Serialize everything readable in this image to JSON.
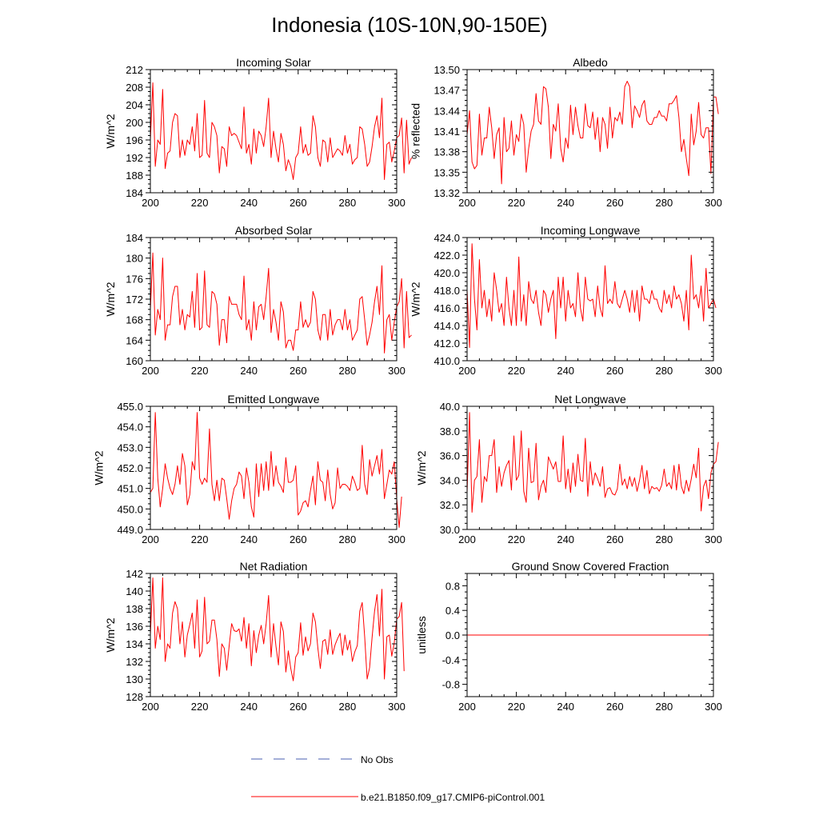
{
  "figure": {
    "title": "Indonesia (10S-10N,90-150E)"
  },
  "legend": {
    "items": [
      {
        "label": "No Obs",
        "color": "#4a5fb0",
        "dash": true
      },
      {
        "label": "b.e21.B1850.f09_g17.CMIP6-piControl.001",
        "color": "#ff0000",
        "dash": false
      }
    ]
  },
  "chart_data": [
    {
      "type": "line",
      "title": "Incoming Solar",
      "ylabel": "W/m^2",
      "xlim": [
        200,
        300
      ],
      "ylim": [
        184,
        212
      ],
      "xticks": [
        200,
        220,
        240,
        260,
        280,
        300
      ],
      "yticks": [
        184,
        188,
        192,
        196,
        200,
        204,
        208,
        212
      ],
      "ytick_labels": [
        "184",
        "188",
        "192",
        "196",
        "200",
        "204",
        "208",
        "212"
      ],
      "series": [
        {
          "name": "b.e21.B1850.f09_g17.CMIP6-piControl.001",
          "color": "#ff0000",
          "x0": 200,
          "values": [
            196,
            209,
            190,
            196,
            195,
            207.5,
            189.5,
            193,
            193.5,
            200,
            202,
            201.5,
            192,
            196,
            192.5,
            196,
            195,
            199,
            193.5,
            202,
            192,
            192.5,
            205,
            193,
            192,
            200,
            199,
            197,
            188.5,
            194.5,
            194,
            190,
            199,
            197,
            197.5,
            197,
            195.5,
            194,
            203.5,
            193,
            195,
            190.5,
            198.5,
            193,
            198,
            197,
            194.5,
            199,
            205.5,
            192,
            198,
            194,
            191,
            197.5,
            195,
            189,
            191.5,
            190,
            187,
            192,
            193,
            199,
            193,
            195,
            192.5,
            193,
            201.5,
            199,
            192,
            190,
            196,
            195.5,
            191,
            196.5,
            192,
            193,
            194,
            193.5,
            192.5,
            197,
            193,
            195,
            190.5,
            191.5,
            192,
            199,
            198.5,
            195,
            190,
            191,
            194.5,
            199,
            201.5,
            196.5,
            205.5,
            187,
            195,
            195.5,
            191,
            193.5,
            196.5,
            197,
            201,
            188.5,
            200.5,
            190.5,
            192
          ]
        }
      ]
    },
    {
      "type": "line",
      "title": "Albedo",
      "ylabel": "% reflected",
      "xlim": [
        200,
        300
      ],
      "ylim": [
        13.32,
        13.5
      ],
      "xticks": [
        200,
        220,
        240,
        260,
        280,
        300
      ],
      "yticks": [
        13.32,
        13.35,
        13.38,
        13.41,
        13.44,
        13.47,
        13.5
      ],
      "ytick_labels": [
        "13.32",
        "13.35",
        "13.38",
        "13.41",
        "13.44",
        "13.47",
        "13.50"
      ],
      "series": [
        {
          "name": "b.e21.B1850.f09_g17.CMIP6-piControl.001",
          "color": "#ff0000",
          "x0": 200,
          "values": [
            13.405,
            13.44,
            13.365,
            13.355,
            13.36,
            13.435,
            13.375,
            13.4,
            13.4,
            13.445,
            13.415,
            13.37,
            13.405,
            13.415,
            13.333,
            13.43,
            13.38,
            13.385,
            13.425,
            13.375,
            13.405,
            13.395,
            13.435,
            13.42,
            13.35,
            13.385,
            13.41,
            13.42,
            13.465,
            13.425,
            13.42,
            13.475,
            13.472,
            13.445,
            13.37,
            13.42,
            13.41,
            13.45,
            13.385,
            13.365,
            13.4,
            13.385,
            13.448,
            13.405,
            13.445,
            13.418,
            13.4,
            13.4,
            13.45,
            13.418,
            13.415,
            13.438,
            13.398,
            13.43,
            13.38,
            13.43,
            13.42,
            13.385,
            13.445,
            13.4,
            13.43,
            13.425,
            13.438,
            13.42,
            13.475,
            13.483,
            13.475,
            13.415,
            13.447,
            13.44,
            13.43,
            13.448,
            13.455,
            13.425,
            13.42,
            13.42,
            13.43,
            13.43,
            13.44,
            13.432,
            13.432,
            13.425,
            13.45,
            13.45,
            13.455,
            13.462,
            13.43,
            13.38,
            13.398,
            13.37,
            13.345,
            13.435,
            13.39,
            13.41,
            13.452,
            13.405,
            13.4,
            13.415,
            13.415,
            13.348,
            13.46,
            13.46,
            13.435
          ]
        }
      ]
    },
    {
      "type": "line",
      "title": "Absorbed Solar",
      "ylabel": "W/m^2",
      "xlim": [
        200,
        300
      ],
      "ylim": [
        160,
        184
      ],
      "xticks": [
        200,
        220,
        240,
        260,
        280,
        300
      ],
      "yticks": [
        160,
        164,
        168,
        172,
        176,
        180,
        184
      ],
      "ytick_labels": [
        "160",
        "164",
        "168",
        "172",
        "176",
        "180",
        "184"
      ],
      "series": [
        {
          "name": "b.e21.B1850.f09_g17.CMIP6-piControl.001",
          "color": "#ff0000",
          "x0": 200,
          "values": [
            170,
            181,
            165,
            170,
            168,
            180,
            164,
            167,
            167,
            172.5,
            174.5,
            174.5,
            167,
            170,
            166,
            169,
            168.5,
            173.5,
            166.5,
            177,
            166,
            166.5,
            177.5,
            167,
            166.5,
            173.5,
            173,
            171,
            163,
            168,
            168,
            163.5,
            172.5,
            171,
            171,
            171,
            169,
            168,
            176.5,
            166,
            168,
            164,
            171.5,
            166,
            170.5,
            171,
            168,
            172.5,
            178,
            165.5,
            170,
            167.5,
            164,
            171.5,
            169.5,
            162.5,
            164,
            164,
            162,
            166,
            166,
            171.5,
            166.5,
            168,
            166.5,
            167.5,
            173.5,
            172,
            166,
            164,
            169,
            169,
            164,
            170,
            165,
            167,
            168,
            168,
            166,
            170,
            166,
            168,
            164,
            165,
            166,
            172,
            172.5,
            168,
            163,
            165,
            167.5,
            171.5,
            174.5,
            169,
            178.5,
            161.5,
            168,
            169,
            164,
            167.5,
            170.5,
            171.5,
            176,
            162.5,
            173.5,
            164.5,
            165
          ]
        }
      ]
    },
    {
      "type": "line",
      "title": "Incoming Longwave",
      "ylabel": "W/m^2",
      "xlim": [
        200,
        300
      ],
      "ylim": [
        410,
        424
      ],
      "xticks": [
        200,
        220,
        240,
        260,
        280,
        300
      ],
      "yticks": [
        410,
        412,
        414,
        416,
        418,
        420,
        422,
        424
      ],
      "ytick_labels": [
        "410.0",
        "412.0",
        "414.0",
        "416.0",
        "418.0",
        "420.0",
        "422.0",
        "424.0"
      ],
      "series": [
        {
          "name": "b.e21.B1850.f09_g17.CMIP6-piControl.001",
          "color": "#ff0000",
          "x0": 200,
          "values": [
            418,
            411.5,
            423.3,
            417,
            413.5,
            421.5,
            416,
            418,
            415,
            417,
            414.5,
            420,
            418,
            415.5,
            416.5,
            414,
            419.5,
            416,
            414,
            418,
            414,
            421.8,
            414.5,
            417.5,
            414,
            419,
            417,
            416.5,
            418,
            415.5,
            414,
            418,
            417.5,
            415.5,
            417,
            418,
            412.5,
            419.5,
            416,
            419.5,
            414.5,
            418,
            416,
            416.5,
            415,
            420,
            416,
            414.5,
            419.5,
            417,
            416.8,
            417,
            415,
            418.5,
            416,
            415,
            420.8,
            416.5,
            417,
            416.5,
            419,
            416.5,
            416,
            417,
            418,
            417,
            415.5,
            418,
            415.5,
            418,
            414.5,
            418.5,
            417,
            417,
            416.5,
            418,
            417,
            417,
            416,
            415.5,
            418,
            416.5,
            417.5,
            416,
            418.5,
            417,
            417.5,
            416.5,
            414.5,
            418,
            413.5,
            422,
            417,
            417.5,
            416,
            418.5,
            414.5,
            420.5,
            416,
            416.5,
            417,
            416
          ]
        }
      ]
    },
    {
      "type": "line",
      "title": "Emitted Longwave",
      "ylabel": "W/m^2",
      "xlim": [
        200,
        300
      ],
      "ylim": [
        449,
        455
      ],
      "xticks": [
        200,
        220,
        240,
        260,
        280,
        300
      ],
      "yticks": [
        449,
        450,
        451,
        452,
        453,
        454,
        455
      ],
      "ytick_labels": [
        "449.0",
        "450.0",
        "451.0",
        "452.0",
        "453.0",
        "454.0",
        "455.0"
      ],
      "series": [
        {
          "name": "b.e21.B1850.f09_g17.CMIP6-piControl.001",
          "color": "#ff0000",
          "x0": 200,
          "values": [
            450.8,
            451,
            454.7,
            451.5,
            450.1,
            451,
            452.2,
            451.5,
            451,
            450.7,
            451.2,
            452.1,
            451.2,
            452.7,
            452.1,
            450.2,
            450.7,
            452.3,
            451.9,
            454.7,
            451.5,
            451.2,
            451.5,
            451.3,
            453.9,
            451.2,
            450.4,
            451.4,
            450.4,
            451.5,
            451.4,
            450.5,
            449.5,
            450.4,
            451,
            451.2,
            451.8,
            451.6,
            450.5,
            452,
            451.3,
            450.1,
            449.6,
            452.2,
            450.6,
            452.2,
            450.9,
            452.3,
            450.9,
            452.8,
            451.1,
            452.1,
            451.3,
            451.1,
            450.8,
            452.5,
            451.3,
            451.3,
            451.4,
            452.1,
            449.7,
            449.9,
            450.3,
            450.4,
            450.1,
            450.9,
            451.6,
            450.2,
            452.3,
            451.4,
            451.3,
            450.4,
            451.9,
            450.7,
            450,
            450.3,
            452,
            451,
            451.2,
            451.2,
            451.1,
            450.9,
            451.6,
            451.3,
            450.9,
            451,
            453.1,
            451.2,
            450.7,
            452.4,
            451.6,
            452.1,
            452.6,
            451.7,
            452.9,
            450.5,
            451.2,
            451.9,
            451.7,
            452.3,
            450.5,
            449.1,
            450.6
          ]
        }
      ]
    },
    {
      "type": "line",
      "title": "Net Longwave",
      "ylabel": "W/m^2",
      "xlim": [
        200,
        300
      ],
      "ylim": [
        30,
        40
      ],
      "xticks": [
        200,
        220,
        240,
        260,
        280,
        300
      ],
      "yticks": [
        30,
        32,
        34,
        36,
        38,
        40
      ],
      "ytick_labels": [
        "30.0",
        "32.0",
        "34.0",
        "36.0",
        "38.0",
        "40.0"
      ],
      "series": [
        {
          "name": "b.e21.B1850.f09_g17.CMIP6-piControl.001",
          "color": "#ff0000",
          "x0": 200,
          "values": [
            33,
            39.5,
            31.4,
            34,
            34.3,
            37.3,
            32.2,
            34.3,
            33.9,
            36,
            36,
            37.3,
            33,
            35.1,
            33.5,
            34.6,
            35.2,
            35.6,
            33.2,
            37.6,
            34,
            34.4,
            38,
            33.1,
            32.2,
            36.6,
            33.8,
            33.9,
            37,
            32.4,
            33.5,
            34,
            33,
            35.9,
            35.4,
            34.9,
            35.5,
            33.9,
            33.9,
            37.6,
            33.3,
            34.9,
            33,
            35.4,
            33.5,
            36.1,
            34,
            33.9,
            37.4,
            32.7,
            35.5,
            33.6,
            34.6,
            34.1,
            33.5,
            35.1,
            32.6,
            33.3,
            33.4,
            32.9,
            32.8,
            33.3,
            35.3,
            33.6,
            34.1,
            33.3,
            34.3,
            33.5,
            34.2,
            33.1,
            34,
            35.2,
            33.3,
            34.8,
            32.9,
            33.5,
            33.3,
            33.4,
            33.1,
            33.6,
            34.9,
            33.5,
            33.8,
            33.3,
            35.2,
            33.2,
            35.3,
            33.5,
            32.9,
            34,
            33.1,
            34.1,
            35.3,
            34.2,
            36.6,
            31.5,
            33.5,
            34,
            32.5,
            34.6,
            35.3,
            35.5,
            37.1
          ]
        }
      ]
    },
    {
      "type": "line",
      "title": "Net Radiation",
      "ylabel": "W/m^2",
      "xlim": [
        200,
        300
      ],
      "ylim": [
        128,
        142
      ],
      "xticks": [
        200,
        220,
        240,
        260,
        280,
        300
      ],
      "yticks": [
        128,
        130,
        132,
        134,
        136,
        138,
        140,
        142
      ],
      "ytick_labels": [
        "128",
        "130",
        "132",
        "134",
        "136",
        "138",
        "140",
        "142"
      ],
      "series": [
        {
          "name": "b.e21.B1850.f09_g17.CMIP6-piControl.001",
          "color": "#ff0000",
          "x0": 200,
          "values": [
            135,
            141.5,
            133.5,
            136,
            134.5,
            141.5,
            132,
            134,
            133.5,
            137.5,
            138.8,
            138,
            134,
            136.5,
            132.5,
            135,
            136.2,
            137.5,
            133.5,
            139,
            132.5,
            133.2,
            139.3,
            134,
            134.3,
            136.7,
            136.7,
            134.5,
            130.3,
            134,
            133.5,
            131,
            133.8,
            136.3,
            135.5,
            135.4,
            135.7,
            134.3,
            137,
            133.5,
            136.3,
            131.5,
            135.5,
            133,
            135,
            136.1,
            134,
            136.3,
            139.5,
            132.5,
            136.3,
            133.7,
            131.6,
            136.5,
            135.4,
            130.8,
            133.2,
            131.2,
            129.8,
            132.5,
            133,
            136.4,
            132.7,
            134.8,
            133.2,
            134,
            137.5,
            136.5,
            133.5,
            131.2,
            134.3,
            134.5,
            132.8,
            135.6,
            132.8,
            133.9,
            134.6,
            135.2,
            132.7,
            135,
            133.3,
            134.4,
            132,
            133.1,
            133.8,
            137.7,
            138.7,
            134.8,
            130,
            131.3,
            134.7,
            137.7,
            139.6,
            134.9,
            140.2,
            130,
            134.8,
            135,
            132.6,
            134.1,
            136.8,
            137.1,
            138.7,
            130.9
          ]
        }
      ]
    },
    {
      "type": "line",
      "title": "Ground Snow Covered Fraction",
      "ylabel": "unitless",
      "xlim": [
        200,
        300
      ],
      "ylim": [
        -1,
        1
      ],
      "xticks": [
        200,
        220,
        240,
        260,
        280,
        300
      ],
      "yticks": [
        -0.8,
        -0.4,
        0,
        0.4,
        0.8
      ],
      "ytick_labels": [
        "-0.8",
        "-0.4",
        "0.0",
        "0.4",
        "0.8"
      ],
      "series": [
        {
          "name": "b.e21.B1850.f09_g17.CMIP6-piControl.001",
          "color": "#ff0000",
          "x0": 200,
          "constant": 0
        }
      ]
    }
  ]
}
